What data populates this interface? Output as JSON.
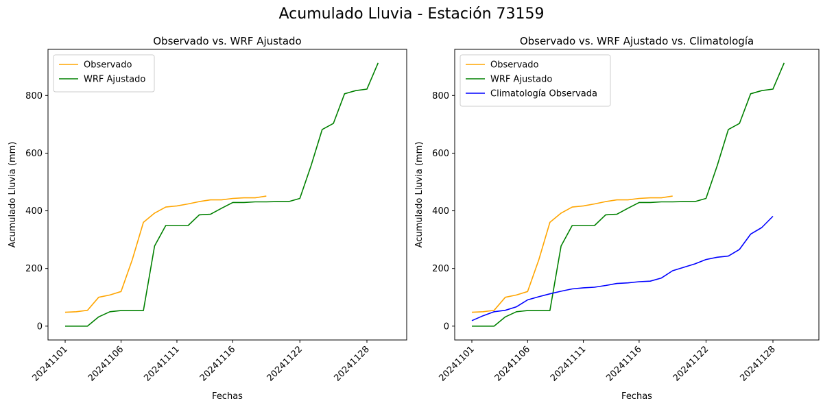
{
  "figure": {
    "title": "Acumulado Lluvia - Estación 73159"
  },
  "colors": {
    "Observado": "#ffa500",
    "WRF Ajustado": "#008000",
    "Climatología Observada": "#0000ff"
  },
  "chart_data": [
    {
      "type": "line",
      "title": "Observado vs. WRF Ajustado",
      "xlabel": "Fechas",
      "ylabel": "Acumulado Lluvia (mm)",
      "x": [
        "20241101",
        "20241102",
        "20241103",
        "20241104",
        "20241105",
        "20241106",
        "20241107",
        "20241108",
        "20241109",
        "20241110",
        "20241111",
        "20241112",
        "20241113",
        "20241114",
        "20241115",
        "20241116",
        "20241117",
        "20241118",
        "20241119",
        "20241120",
        "20241121",
        "20241122",
        "20241123",
        "20241124",
        "20241125",
        "20241126",
        "20241127",
        "20241128",
        "20241129",
        "20241130"
      ],
      "xticks": [
        "20241101",
        "20241106",
        "20241111",
        "20241116",
        "20241122",
        "20241128"
      ],
      "ylim": [
        -48,
        960
      ],
      "yticks": [
        0,
        200,
        400,
        600,
        800
      ],
      "legend": "upper-left",
      "grid": false,
      "series": [
        {
          "name": "Observado",
          "color": "#ffa500",
          "values": [
            48,
            50,
            55,
            100,
            108,
            120,
            230,
            360,
            392,
            413,
            417,
            424,
            432,
            438,
            438,
            443,
            445,
            445,
            451,
            null,
            null,
            null,
            null,
            null,
            null,
            null,
            null,
            null,
            null,
            null
          ]
        },
        {
          "name": "WRF Ajustado",
          "color": "#008000",
          "values": [
            0,
            0,
            0,
            32,
            50,
            54,
            54,
            54,
            278,
            349,
            349,
            349,
            386,
            388,
            409,
            429,
            429,
            431,
            431,
            432,
            432,
            443,
            556,
            682,
            703,
            806,
            817,
            822,
            913,
            null
          ]
        }
      ]
    },
    {
      "type": "line",
      "title": "Observado vs. WRF Ajustado vs. Climatología",
      "xlabel": "Fechas",
      "ylabel": "Acumulado Lluvia (mm)",
      "x": [
        "20241101",
        "20241102",
        "20241103",
        "20241104",
        "20241105",
        "20241106",
        "20241107",
        "20241108",
        "20241109",
        "20241110",
        "20241111",
        "20241112",
        "20241113",
        "20241114",
        "20241115",
        "20241116",
        "20241117",
        "20241118",
        "20241119",
        "20241120",
        "20241121",
        "20241122",
        "20241123",
        "20241124",
        "20241125",
        "20241126",
        "20241127",
        "20241128",
        "20241129",
        "20241130"
      ],
      "xticks": [
        "20241101",
        "20241106",
        "20241111",
        "20241116",
        "20241122",
        "20241128"
      ],
      "ylim": [
        -48,
        960
      ],
      "yticks": [
        0,
        200,
        400,
        600,
        800
      ],
      "legend": "upper-left",
      "grid": false,
      "series": [
        {
          "name": "Observado",
          "color": "#ffa500",
          "values": [
            48,
            50,
            55,
            100,
            108,
            120,
            230,
            360,
            392,
            413,
            417,
            424,
            432,
            438,
            438,
            443,
            445,
            445,
            451,
            null,
            null,
            null,
            null,
            null,
            null,
            null,
            null,
            null,
            null,
            null
          ]
        },
        {
          "name": "WRF Ajustado",
          "color": "#008000",
          "values": [
            0,
            0,
            0,
            32,
            50,
            54,
            54,
            54,
            278,
            349,
            349,
            349,
            386,
            388,
            409,
            429,
            429,
            431,
            431,
            432,
            432,
            443,
            556,
            682,
            703,
            806,
            817,
            822,
            913,
            null
          ]
        },
        {
          "name": "Climatología Observada",
          "color": "#0000ff",
          "values": [
            19,
            36,
            50,
            55,
            67,
            91,
            102,
            112,
            121,
            129,
            133,
            135,
            141,
            148,
            150,
            154,
            156,
            167,
            192,
            204,
            216,
            231,
            239,
            243,
            266,
            319,
            342,
            381,
            null,
            null
          ]
        }
      ]
    }
  ]
}
